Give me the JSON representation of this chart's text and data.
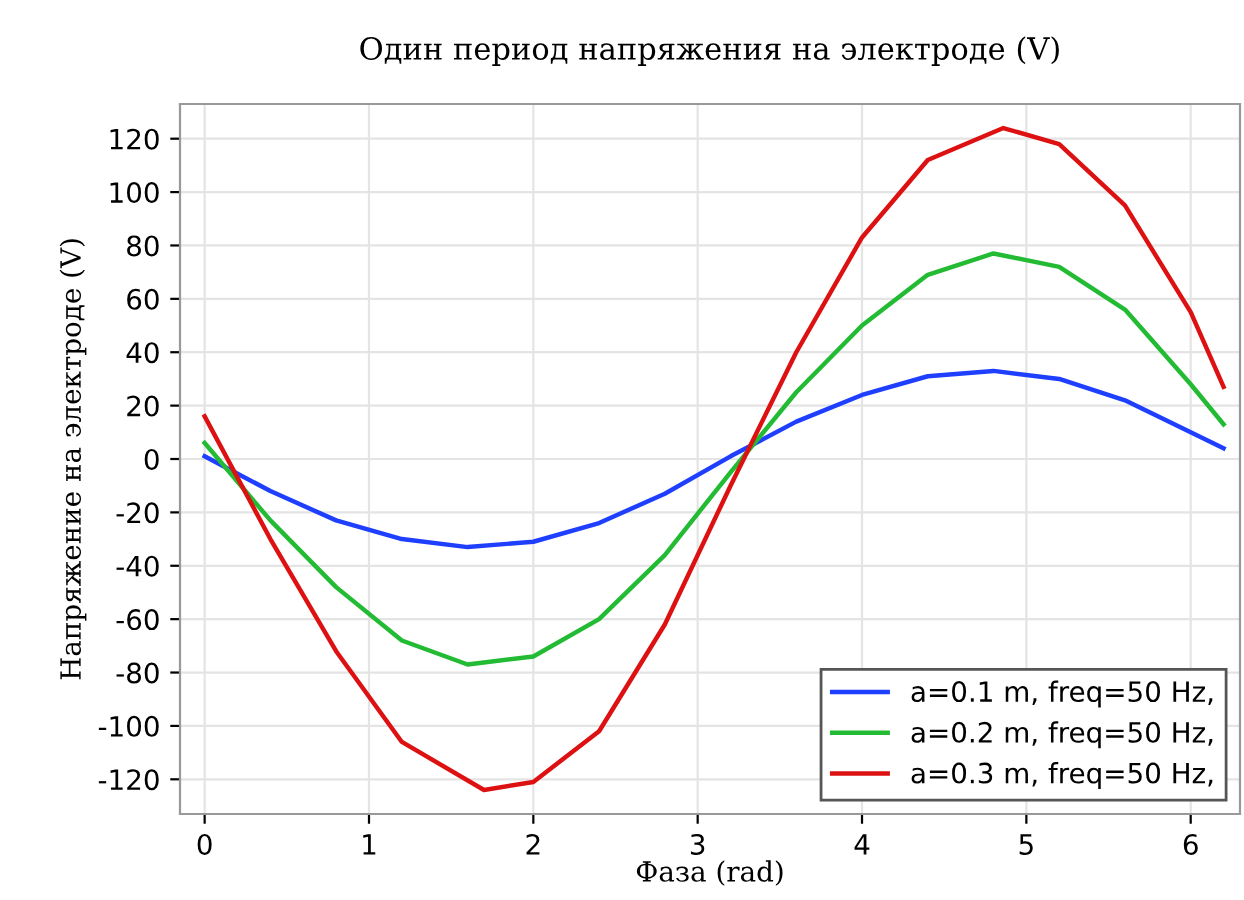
{
  "chart_data": {
    "type": "line",
    "title": "Один период напряжения на электроде (V)",
    "xlabel": "Фаза (rad)",
    "ylabel": "Напряжение на электроде (V)",
    "xlim": [
      -0.15,
      6.3
    ],
    "ylim": [
      -133,
      133
    ],
    "xticks": [
      0,
      1,
      2,
      3,
      4,
      5,
      6
    ],
    "yticks": [
      -120,
      -100,
      -80,
      -60,
      -40,
      -20,
      0,
      20,
      40,
      60,
      80,
      100,
      120
    ],
    "grid": true,
    "legend": "bottom right",
    "marker": "none",
    "line_style": "solid",
    "series": [
      {
        "name": "a=0.1 m, freq=50 Hz,",
        "color": "#1f3fff",
        "x": [
          0,
          0.4,
          0.8,
          1.2,
          1.6,
          2.0,
          2.4,
          2.8,
          3.2,
          3.6,
          4.0,
          4.4,
          4.8,
          5.2,
          5.6,
          6.0,
          6.2
        ],
        "values": [
          1,
          -12,
          -23,
          -30,
          -33,
          -31,
          -24,
          -13,
          1,
          14,
          24,
          31,
          33,
          30,
          22,
          10,
          4
        ]
      },
      {
        "name": "a=0.2 m, freq=50 Hz,",
        "color": "#22bb33",
        "x": [
          0,
          0.4,
          0.8,
          1.2,
          1.6,
          2.0,
          2.4,
          2.8,
          3.2,
          3.6,
          4.0,
          4.4,
          4.8,
          5.2,
          5.6,
          6.0,
          6.2
        ],
        "values": [
          6,
          -23,
          -48,
          -68,
          -77,
          -74,
          -60,
          -36,
          -5,
          25,
          50,
          69,
          77,
          72,
          56,
          28,
          13
        ]
      },
      {
        "name": "a=0.3 m, freq=50 Hz,",
        "color": "#dd1111",
        "x": [
          0,
          0.4,
          0.8,
          1.2,
          1.7,
          2.0,
          2.4,
          2.8,
          3.2,
          3.6,
          4.0,
          4.4,
          4.86,
          5.2,
          5.6,
          6.0,
          6.2
        ],
        "values": [
          16,
          -30,
          -72,
          -106,
          -124,
          -121,
          -102,
          -62,
          -10,
          40,
          83,
          112,
          124,
          118,
          95,
          55,
          27
        ]
      }
    ]
  }
}
